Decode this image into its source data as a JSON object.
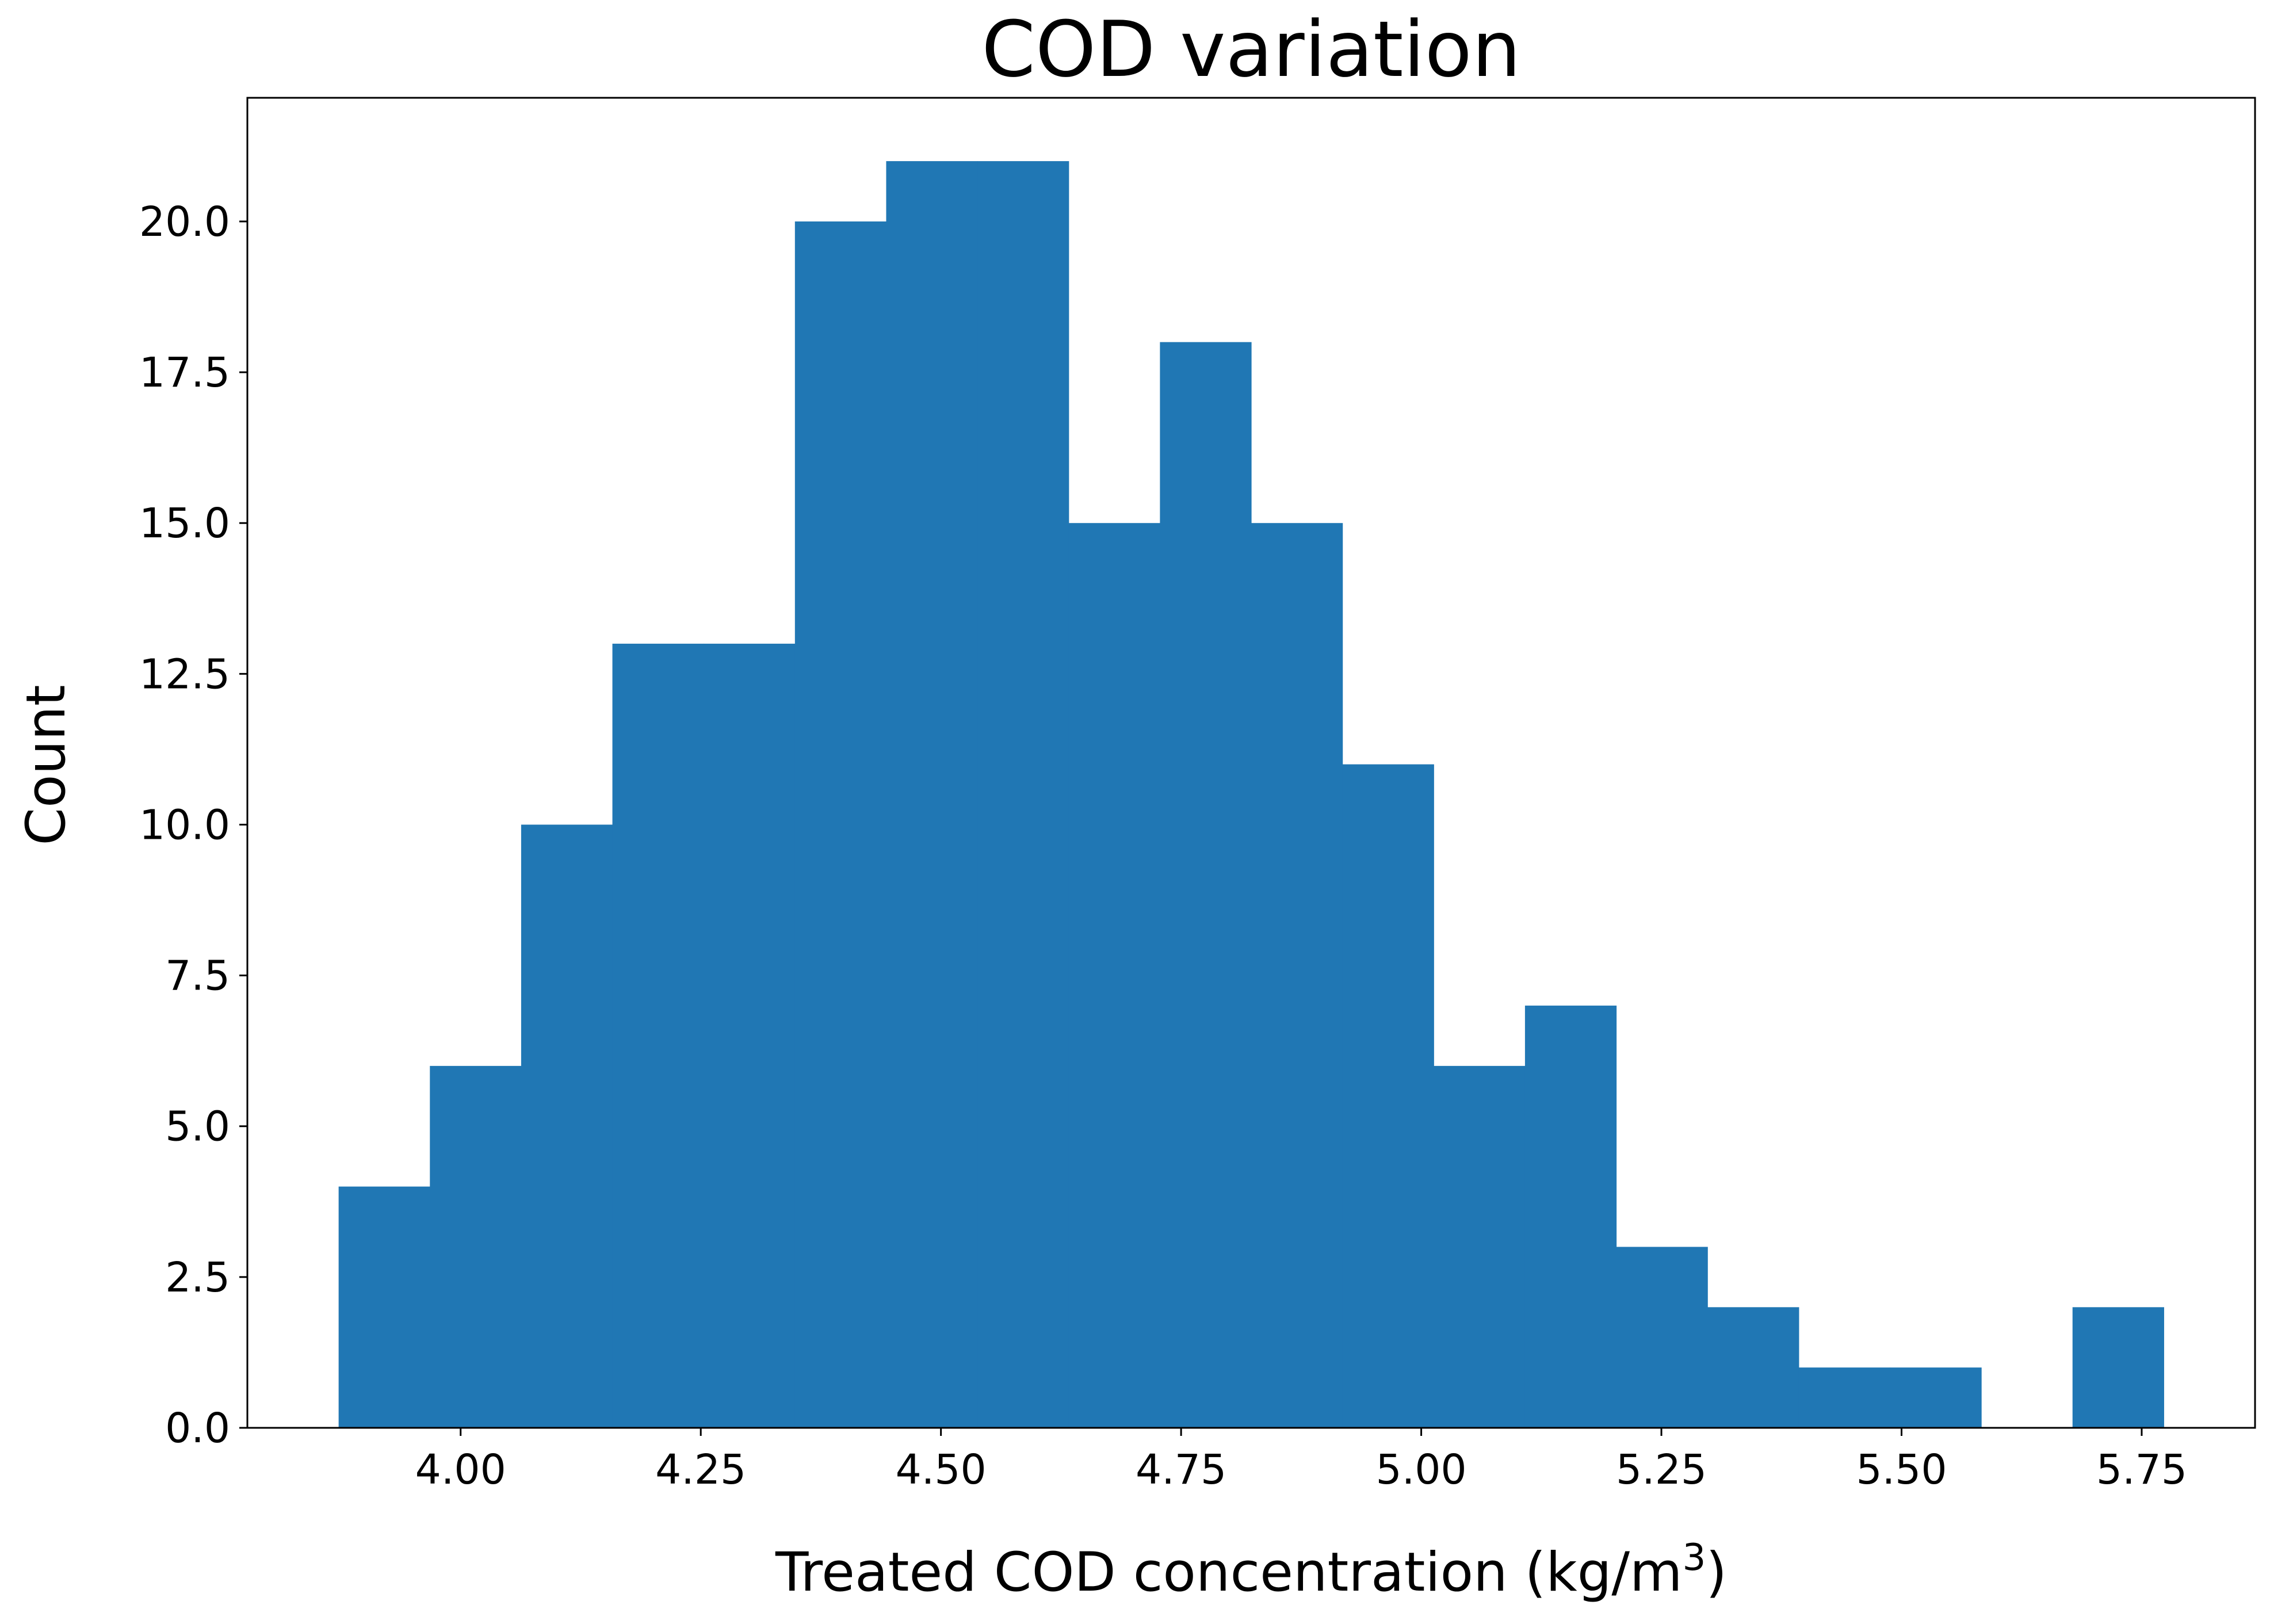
{
  "chart_data": {
    "type": "bar",
    "title": "COD variation",
    "xlabel": "Treated COD concentration (kg/m",
    "xlabel_superscript": "3",
    "xlabel_suffix": ")",
    "ylabel": "Count",
    "bin_edges": [
      3.873,
      3.968,
      4.063,
      4.158,
      4.253,
      4.348,
      4.443,
      4.538,
      4.633,
      4.728,
      4.823,
      4.918,
      5.013,
      5.108,
      5.203,
      5.298,
      5.393,
      5.488,
      5.583,
      5.678,
      5.773
    ],
    "values": [
      4,
      6,
      10,
      13,
      13,
      20,
      21,
      21,
      15,
      18,
      15,
      11,
      6,
      7,
      3,
      2,
      1,
      1,
      0,
      2
    ],
    "xlim": [
      3.778,
      5.868
    ],
    "ylim": [
      0,
      22.05
    ],
    "xticks": [
      4.0,
      4.25,
      4.5,
      4.75,
      5.0,
      5.25,
      5.5,
      5.75
    ],
    "xtick_labels": [
      "4.00",
      "4.25",
      "4.50",
      "4.75",
      "5.00",
      "5.25",
      "5.50",
      "5.75"
    ],
    "yticks": [
      0,
      2.5,
      5,
      7.5,
      10,
      12.5,
      15,
      17.5,
      20
    ],
    "ytick_labels": [
      "0.0",
      "2.5",
      "5.0",
      "7.5",
      "10.0",
      "12.5",
      "15.0",
      "17.5",
      "20.0"
    ],
    "bar_color": "#2077b4",
    "grid": false,
    "legend": "none"
  }
}
